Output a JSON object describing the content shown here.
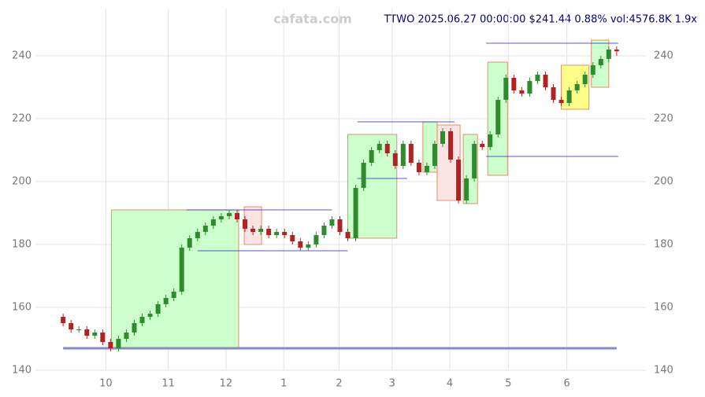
{
  "chart_data": {
    "type": "candlestick",
    "watermark": "cafata.com",
    "title": "TTWO 2025.06.27 00:00:00 $241.44 0.88% vol:4576.8K 1.9x",
    "x": [
      0,
      1,
      2,
      3,
      4,
      5,
      6,
      7,
      8,
      9,
      10,
      11,
      12,
      13,
      14,
      15,
      16,
      17,
      18,
      19,
      20,
      21,
      22,
      23,
      24,
      25,
      26,
      27,
      28,
      29,
      30,
      31,
      32,
      33,
      34,
      35,
      36,
      37,
      38,
      39,
      40,
      41,
      42,
      43,
      44,
      45,
      46,
      47,
      48,
      49,
      50,
      51,
      52,
      53,
      54,
      55,
      56,
      57,
      58,
      59,
      60,
      61,
      62,
      63,
      64,
      65,
      66,
      67,
      68,
      69,
      70
    ],
    "open": [
      157,
      155,
      153,
      153,
      151,
      152,
      149,
      147,
      150,
      152,
      155,
      157,
      158,
      161,
      163,
      165,
      179,
      182,
      184,
      186,
      188,
      189,
      190,
      188,
      185,
      184,
      185,
      183,
      184,
      183,
      181,
      179,
      180,
      183,
      186,
      188,
      184,
      182,
      198,
      206,
      210,
      212,
      209,
      205,
      212,
      206,
      203,
      205,
      212,
      216,
      207,
      194,
      201,
      212,
      211,
      215,
      226,
      233,
      229,
      228,
      232,
      234,
      230,
      226,
      225,
      229,
      231,
      234,
      237,
      239,
      242
    ],
    "high": [
      158,
      156,
      154,
      154,
      153,
      153,
      150,
      151,
      153,
      156,
      158,
      159,
      162,
      164,
      166,
      180,
      183,
      185,
      187,
      189,
      190,
      191,
      191,
      189,
      186,
      186,
      186,
      185,
      185,
      184,
      182,
      181,
      184,
      187,
      189,
      189,
      185,
      199,
      207,
      211,
      213,
      213,
      210,
      213,
      213,
      207,
      206,
      213,
      217,
      217,
      208,
      202,
      213,
      213,
      216,
      227,
      234,
      234,
      230,
      233,
      235,
      235,
      231,
      227,
      230,
      232,
      235,
      238,
      240,
      243,
      243
    ],
    "low": [
      154,
      152,
      152,
      150,
      150,
      148,
      146,
      146,
      149,
      151,
      154,
      156,
      157,
      160,
      162,
      164,
      178,
      181,
      183,
      185,
      187,
      188,
      187,
      184,
      183,
      183,
      182,
      182,
      182,
      180,
      178,
      178,
      179,
      182,
      185,
      183,
      181,
      181,
      197,
      205,
      209,
      208,
      204,
      204,
      205,
      202,
      202,
      204,
      211,
      206,
      193,
      193,
      200,
      210,
      210,
      214,
      225,
      228,
      227,
      227,
      231,
      229,
      225,
      224,
      224,
      228,
      230,
      233,
      236,
      238,
      240
    ],
    "close": [
      155,
      153,
      153,
      151,
      152,
      149,
      147,
      150,
      152,
      155,
      157,
      158,
      161,
      163,
      165,
      179,
      182,
      184,
      186,
      188,
      189,
      190,
      188,
      185,
      184,
      185,
      183,
      184,
      183,
      181,
      179,
      180,
      183,
      186,
      188,
      184,
      182,
      198,
      206,
      210,
      212,
      209,
      205,
      212,
      206,
      203,
      205,
      212,
      216,
      207,
      194,
      201,
      212,
      211,
      215,
      226,
      233,
      229,
      228,
      232,
      234,
      230,
      226,
      225,
      229,
      231,
      234,
      237,
      239,
      242,
      241.44
    ],
    "up_color": "#2e8b2e",
    "down_color": "#b22222",
    "zones": [
      {
        "x0": 6.1,
        "x1": 22.2,
        "y0": 147,
        "y1": 191,
        "color": "#ccffcc"
      },
      {
        "x0": 22.9,
        "x1": 25.1,
        "y0": 180,
        "y1": 192,
        "color": "#fbe3e3"
      },
      {
        "x0": 36,
        "x1": 42.2,
        "y0": 182,
        "y1": 215,
        "color": "#ccffcc"
      },
      {
        "x0": 45.5,
        "x1": 47.3,
        "y0": 203,
        "y1": 219,
        "color": "#ccffcc"
      },
      {
        "x0": 47.3,
        "x1": 50.2,
        "y0": 194,
        "y1": 218,
        "color": "#fbe3e3"
      },
      {
        "x0": 50.6,
        "x1": 52.4,
        "y0": 193,
        "y1": 215,
        "color": "#ccffcc"
      },
      {
        "x0": 53.7,
        "x1": 56.2,
        "y0": 202,
        "y1": 238,
        "color": "#ccffcc"
      },
      {
        "x0": 63,
        "x1": 66.5,
        "y0": 223,
        "y1": 237,
        "color": "#ffff88"
      },
      {
        "x0": 66.8,
        "x1": 69,
        "y0": 230,
        "y1": 245,
        "color": "#ccffcc"
      }
    ],
    "levels": [
      {
        "x0": 15.6,
        "x1": 34,
        "y": 191
      },
      {
        "x0": 17,
        "x1": 36,
        "y": 178
      },
      {
        "x0": 37.2,
        "x1": 49.5,
        "y": 219
      },
      {
        "x0": 37.2,
        "x1": 43.5,
        "y": 201
      },
      {
        "x0": 53.5,
        "x1": 70.2,
        "y": 244
      },
      {
        "x0": 53.5,
        "x1": 70.2,
        "y": 208
      }
    ],
    "xlim": [
      -3.5,
      73.7
    ],
    "xticks": [
      {
        "value": 5.4,
        "label": "10"
      },
      {
        "value": 13.3,
        "label": "11"
      },
      {
        "value": 20.6,
        "label": "12"
      },
      {
        "value": 27.9,
        "label": "1"
      },
      {
        "value": 34.9,
        "label": "2"
      },
      {
        "value": 41.6,
        "label": "3"
      },
      {
        "value": 48.9,
        "label": "4"
      },
      {
        "value": 56.3,
        "label": "5"
      },
      {
        "value": 63.7,
        "label": "6"
      }
    ],
    "ylim": [
      140,
      255
    ],
    "yticks": [
      140,
      160,
      180,
      200,
      220,
      240
    ],
    "grid": true
  }
}
